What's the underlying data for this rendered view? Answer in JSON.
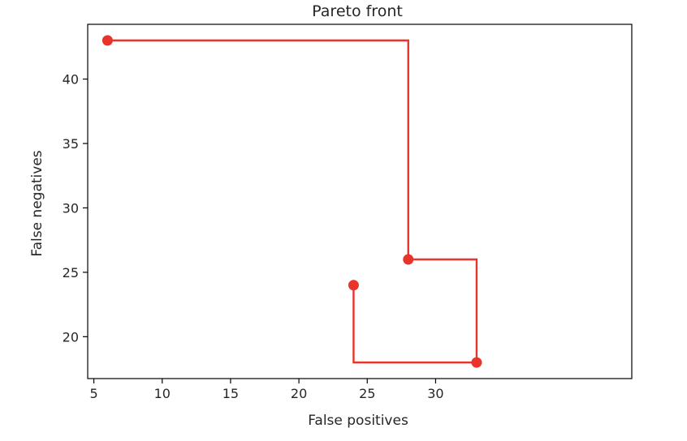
{
  "chart_data": {
    "type": "line",
    "title": "Pareto front",
    "xlabel": "False positives",
    "ylabel": "False negatives",
    "xlim": [
      4.55,
      44.35
    ],
    "ylim": [
      16.75,
      44.25
    ],
    "x_ticks": [
      5,
      10,
      15,
      20,
      25,
      30
    ],
    "x_tick_labels": [
      "5",
      "10",
      "15",
      "20",
      "25",
      "30"
    ],
    "y_ticks": [
      20,
      25,
      30,
      35,
      40
    ],
    "y_tick_labels": [
      "20",
      "25",
      "30",
      "35",
      "40"
    ],
    "step_style": "post",
    "series": [
      {
        "color": "#e8342a",
        "x": [
          6,
          28,
          33,
          24
        ],
        "y": [
          43,
          26,
          18,
          24
        ]
      }
    ]
  }
}
